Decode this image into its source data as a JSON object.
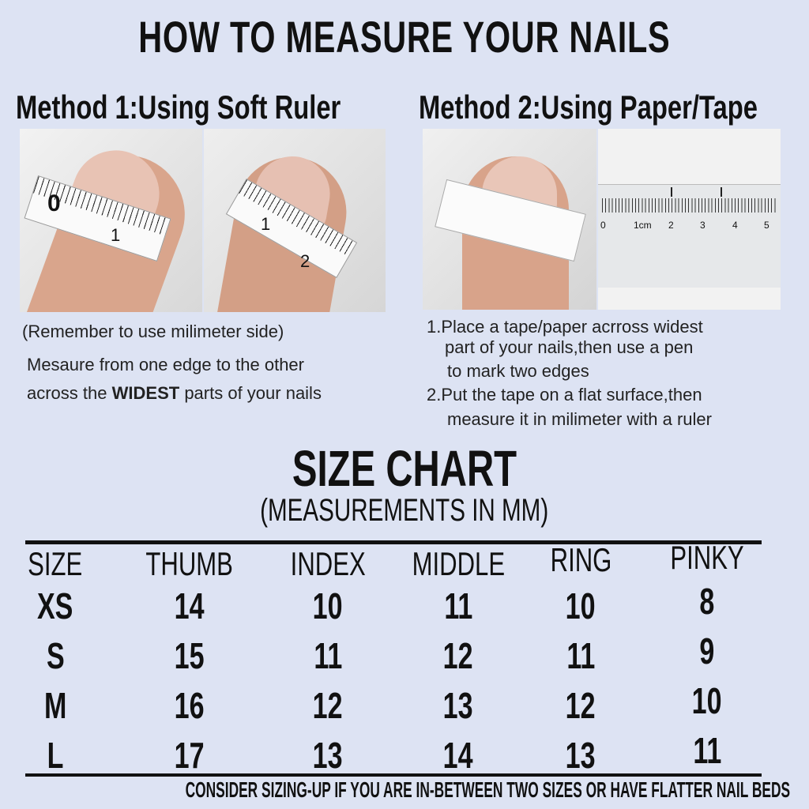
{
  "title": "HOW TO MEASURE YOUR NAILS",
  "method1": {
    "title": "Method 1:Using Soft Ruler",
    "note": "(Remember to use milimeter side)",
    "line1": "Mesaure from one edge to the other",
    "line2_pre": "across the",
    "line2_bold": "WIDEST",
    "line2_post": "parts of your nails",
    "photo1_marks": [
      "0",
      "1"
    ],
    "photo2_marks": [
      "1",
      "2"
    ]
  },
  "method2": {
    "title": "Method 2:Using Paper/Tape",
    "step1_a": "1.Place a tape/paper acrross widest",
    "step1_b": "part of your nails,then use a pen",
    "step1_c": "to mark two edges",
    "step2_a": "2.Put the tape on a flat surface,then",
    "step2_b": "measure it in milimeter with a ruler",
    "ruler_labels": [
      "0",
      "1cm",
      "2",
      "3",
      "4",
      "5"
    ]
  },
  "size_chart": {
    "title": "SIZE CHART",
    "subtitle": "(MEASUREMENTS IN MM)",
    "headers": [
      "SIZE",
      "THUMB",
      "INDEX",
      "MIDDLE",
      "RING",
      "PINKY"
    ],
    "rows": [
      [
        "XS",
        "14",
        "10",
        "11",
        "10",
        "8"
      ],
      [
        "S",
        "15",
        "11",
        "12",
        "11",
        "9"
      ],
      [
        "M",
        "16",
        "12",
        "13",
        "12",
        "10"
      ],
      [
        "L",
        "17",
        "13",
        "14",
        "13",
        "11"
      ]
    ],
    "footer": "CONSIDER SIZING-UP IF YOU ARE IN-BETWEEN TWO SIZES OR HAVE FLATTER NAIL BEDS"
  },
  "colors": {
    "background": "#dde3f3",
    "text": "#111111"
  }
}
